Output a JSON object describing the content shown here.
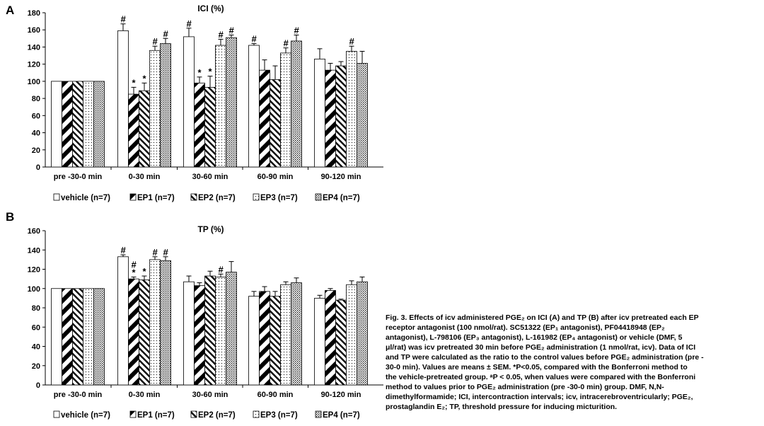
{
  "chart_data": [
    {
      "panel": "A",
      "type": "bar",
      "title": "ICI (%)",
      "ylim": [
        0,
        180
      ],
      "yticks": [
        "0",
        "20",
        "40",
        "60",
        "80",
        "100",
        "120",
        "140",
        "160",
        "180"
      ],
      "categories": [
        "pre -30-0 min",
        "0-30 min",
        "30-60 min",
        "60-90 min",
        "90-120 min"
      ],
      "series": [
        {
          "name": "vehicle (n=7)",
          "values": [
            100,
            159,
            152,
            142,
            126
          ],
          "errors": [
            0,
            8,
            10,
            2,
            12
          ]
        },
        {
          "name": "EP1 (n=7)",
          "values": [
            100,
            85,
            98,
            113,
            113
          ],
          "errors": [
            0,
            8,
            7,
            12,
            8
          ]
        },
        {
          "name": "EP2 (n=7)",
          "values": [
            100,
            89,
            93,
            102,
            118
          ],
          "errors": [
            0,
            9,
            13,
            16,
            5
          ]
        },
        {
          "name": "EP3 (n=7)",
          "values": [
            100,
            136,
            142,
            133,
            135
          ],
          "errors": [
            0,
            5,
            7,
            6,
            6
          ]
        },
        {
          "name": "EP4 (n=7)",
          "values": [
            100,
            144,
            151,
            147,
            121
          ],
          "errors": [
            0,
            6,
            3,
            7,
            14
          ]
        }
      ],
      "annotations": {
        "hash": [
          [
            1,
            0
          ],
          [
            1,
            3
          ],
          [
            1,
            4
          ],
          [
            2,
            0
          ],
          [
            2,
            3
          ],
          [
            2,
            4
          ],
          [
            3,
            0
          ],
          [
            3,
            3
          ],
          [
            3,
            4
          ],
          [
            4,
            3
          ]
        ],
        "star": [
          [
            1,
            1
          ],
          [
            1,
            2
          ],
          [
            2,
            1
          ],
          [
            2,
            2
          ]
        ]
      }
    },
    {
      "panel": "B",
      "type": "bar",
      "title": "TP (%)",
      "ylim": [
        0,
        160
      ],
      "yticks": [
        "0",
        "20",
        "40",
        "60",
        "80",
        "100",
        "120",
        "140",
        "160"
      ],
      "categories": [
        "pre -30-0 min",
        "0-30 min",
        "30-60 min",
        "60-90 min",
        "90-120 min"
      ],
      "series": [
        {
          "name": "vehicle (n=7)",
          "values": [
            100,
            133,
            107,
            92,
            90
          ],
          "errors": [
            0,
            2,
            6,
            5,
            3
          ]
        },
        {
          "name": "EP1 (n=7)",
          "values": [
            100,
            110,
            103,
            97,
            98
          ],
          "errors": [
            0,
            2,
            3,
            5,
            2
          ]
        },
        {
          "name": "EP2 (n=7)",
          "values": [
            100,
            109,
            113,
            92,
            88
          ],
          "errors": [
            0,
            4,
            5,
            5,
            1
          ]
        },
        {
          "name": "EP3 (n=7)",
          "values": [
            100,
            130,
            112,
            104,
            104
          ],
          "errors": [
            0,
            3,
            3,
            3,
            4
          ]
        },
        {
          "name": "EP4 (n=7)",
          "values": [
            100,
            129,
            117,
            106,
            107
          ],
          "errors": [
            0,
            4,
            11,
            5,
            5
          ]
        }
      ],
      "annotations": {
        "hash": [
          [
            1,
            0
          ],
          [
            1,
            1
          ],
          [
            1,
            3
          ],
          [
            1,
            4
          ],
          [
            2,
            3
          ]
        ],
        "star": [
          [
            1,
            1
          ],
          [
            1,
            2
          ]
        ]
      }
    }
  ],
  "symbols": {
    "hash": "#",
    "star": "*"
  },
  "caption": {
    "lines": [
      "Fig. 3. Effects of icv administered PGE₂ on ICI (A) and TP (B) after icv pretreated each EP",
      "receptor antagonist (100 nmol/rat). SC51322 (EP₁ antagonist), PF04418948 (EP₂",
      "antagonist), L-798106 (EP₃ antagonist), L-161982 (EP₄ antagonist) or vehicle (DMF, 5",
      "μl/rat) was icv pretreated 30 min before PGE₂ administration (1 nmol/rat, icv). Data of ICI",
      "and TP were calculated as the ratio to the control values before PGE₂ administration (pre -",
      "30-0 min). Values are means ± SEM. *P<0.05, compared with the Bonferroni method to",
      "the vehicle-pretreated group. ᵃP < 0.05, when values were compared with the Bonferroni",
      "method to values prior to PGE₂ administration (pre -30-0 min) group. DMF, N,N-",
      "dimethylformamide; ICI, intercontraction intervals; icv, intracerebroventricularly; PGE₂,",
      "prostaglandin E₂; TP, threshold pressure for inducing micturition."
    ]
  }
}
